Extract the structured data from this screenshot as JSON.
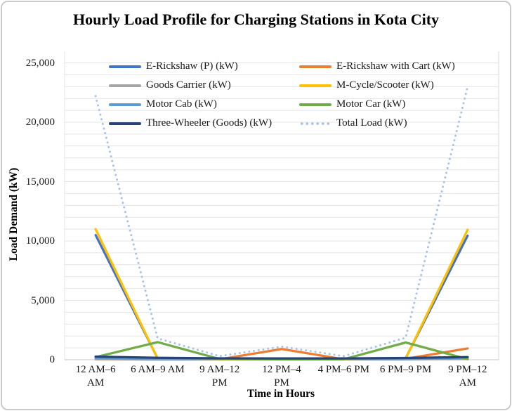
{
  "chart": {
    "title": "Hourly Load Profile for Charging Stations in Kota City",
    "ylabel": "Load Demand (kW)",
    "xlabel": "Time in Hours"
  },
  "chart_data": {
    "type": "line",
    "title": "Hourly Load Profile for Charging Stations in Kota City",
    "xlabel": "Time in Hours",
    "ylabel": "Load Demand (kW)",
    "ylim": [
      0,
      25000
    ],
    "gridline_interval": 1000,
    "ytick_interval": 5000,
    "grid": true,
    "legend_position": "top-inside-two-columns",
    "categories": [
      "12 AM–6 AM",
      "6 AM–9 AM",
      "9 AM–12 PM",
      "12 PM–4 PM",
      "4 PM–6 PM",
      "6 PM–9 PM",
      "9 PM–12 AM"
    ],
    "categories_display": [
      "12 AM–6\nAM",
      "6 AM–9 AM",
      "9 AM–12\nPM",
      "12 PM–4\nPM",
      "4 PM–6 PM",
      "6 PM–9 PM",
      "9 PM–12\nAM"
    ],
    "ytick_labels": [
      "25,000",
      "20,000",
      "15,000",
      "10,000",
      "5,000",
      "0"
    ],
    "ytick_values": [
      25000,
      20000,
      15000,
      10000,
      5000,
      0
    ],
    "series": [
      {
        "name": "E-Rickshaw (P) (kW)",
        "color": "#4472C4",
        "style": "solid",
        "values": [
          10500,
          120,
          60,
          60,
          60,
          120,
          10450
        ]
      },
      {
        "name": "E-Rickshaw with Cart (kW)",
        "color": "#ED7D31",
        "style": "solid",
        "values": [
          40,
          15,
          40,
          900,
          40,
          80,
          950
        ]
      },
      {
        "name": "Goods Carrier (kW)",
        "color": "#A5A5A5",
        "style": "solid",
        "values": [
          60,
          25,
          25,
          25,
          25,
          25,
          60
        ]
      },
      {
        "name": "M-Cycle/Scooter (kW)",
        "color": "#FFC000",
        "style": "solid",
        "values": [
          11000,
          90,
          40,
          40,
          40,
          90,
          10950
        ]
      },
      {
        "name": "Motor Cab (kW)",
        "color": "#5B9BD5",
        "style": "solid",
        "values": [
          140,
          70,
          70,
          70,
          70,
          70,
          140
        ]
      },
      {
        "name": "Motor Car (kW)",
        "color": "#70AD47",
        "style": "solid",
        "values": [
          220,
          1480,
          60,
          30,
          40,
          1450,
          50
        ]
      },
      {
        "name": "Three-Wheeler (Goods) (kW)",
        "color": "#264478",
        "style": "solid",
        "values": [
          260,
          160,
          120,
          110,
          110,
          150,
          220
        ]
      },
      {
        "name": "Total Load (kW)",
        "color": "#A9C4E9",
        "style": "dotted",
        "values": [
          22200,
          1800,
          300,
          1100,
          300,
          1850,
          23000
        ]
      }
    ]
  }
}
